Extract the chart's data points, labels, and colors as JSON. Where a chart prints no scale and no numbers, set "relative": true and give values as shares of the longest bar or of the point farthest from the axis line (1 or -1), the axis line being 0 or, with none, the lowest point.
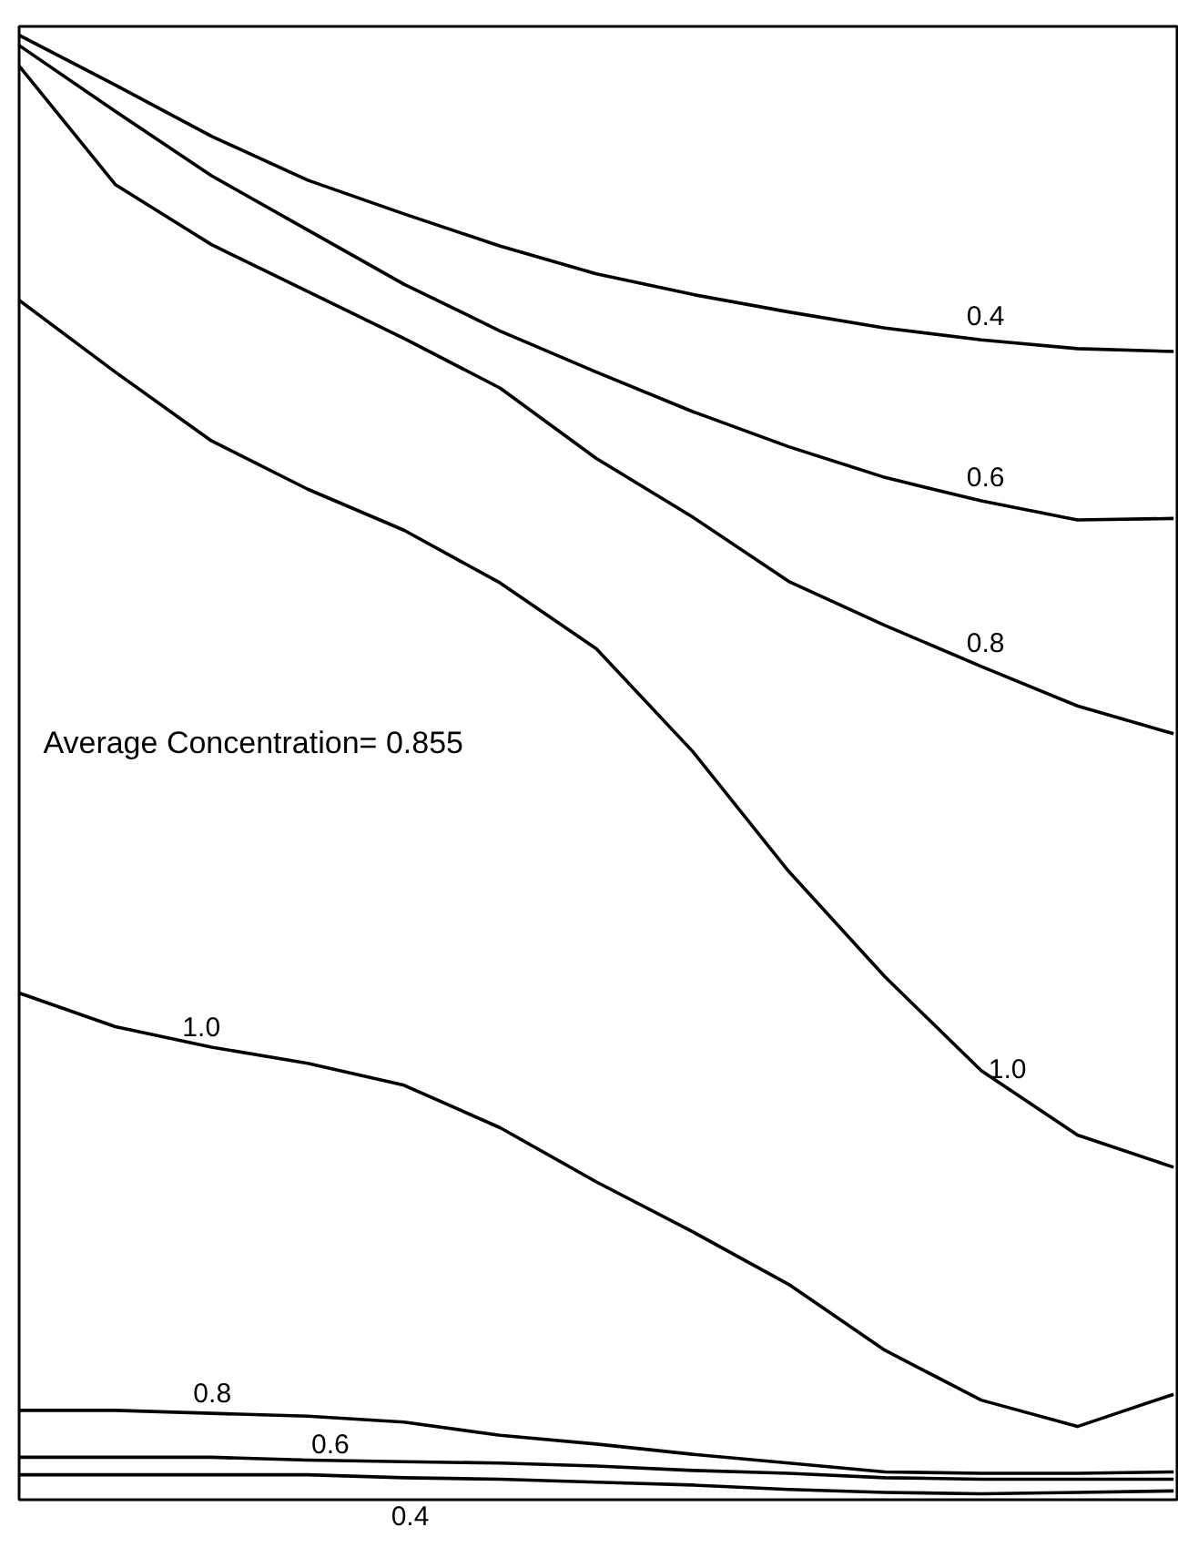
{
  "chart_data": {
    "type": "line",
    "relative": true,
    "categories": [
      null,
      null,
      null,
      null,
      null,
      null,
      null,
      null,
      null,
      null,
      null,
      null,
      null
    ],
    "annotations": [
      "Average Concentration= 0.855"
    ],
    "series": [
      {
        "name": "0.4",
        "color": "#000000",
        "values": [
          1.0,
          0.966,
          0.931,
          0.901,
          0.878,
          0.856,
          0.837,
          0.823,
          0.811,
          0.8,
          0.792,
          0.786,
          0.784
        ]
      },
      {
        "name": "0.6",
        "color": "#000000",
        "values": [
          0.993,
          0.948,
          0.904,
          0.867,
          0.83,
          0.798,
          0.77,
          0.743,
          0.719,
          0.698,
          0.682,
          0.669,
          0.67
        ]
      },
      {
        "name": "0.8",
        "color": "#000000",
        "values": [
          0.979,
          0.898,
          0.857,
          0.825,
          0.793,
          0.759,
          0.711,
          0.671,
          0.627,
          0.597,
          0.569,
          0.542,
          0.523
        ]
      },
      {
        "name": "1.0",
        "color": "#000000",
        "values": [
          0.819,
          0.77,
          0.723,
          0.69,
          0.662,
          0.626,
          0.581,
          0.511,
          0.429,
          0.357,
          0.293,
          0.249,
          0.227
        ]
      },
      {
        "name": "1.0",
        "color": "#000000",
        "values": [
          0.346,
          0.323,
          0.309,
          0.298,
          0.283,
          0.254,
          0.217,
          0.183,
          0.147,
          0.102,
          0.068,
          0.05,
          0.072
        ]
      },
      {
        "name": "0.8",
        "color": "#000000",
        "values": [
          0.061,
          0.061,
          0.059,
          0.057,
          0.053,
          0.044,
          0.038,
          0.031,
          0.025,
          0.019,
          0.018,
          0.018,
          0.019
        ]
      },
      {
        "name": "0.6",
        "color": "#000000",
        "values": [
          0.029,
          0.029,
          0.029,
          0.027,
          0.026,
          0.025,
          0.023,
          0.02,
          0.018,
          0.015,
          0.014,
          0.014,
          0.014
        ]
      },
      {
        "name": "0.4",
        "color": "#000000",
        "values": [
          0.017,
          0.017,
          0.017,
          0.017,
          0.015,
          0.014,
          0.012,
          0.01,
          0.007,
          0.005,
          0.004,
          0.005,
          0.006
        ]
      }
    ]
  }
}
